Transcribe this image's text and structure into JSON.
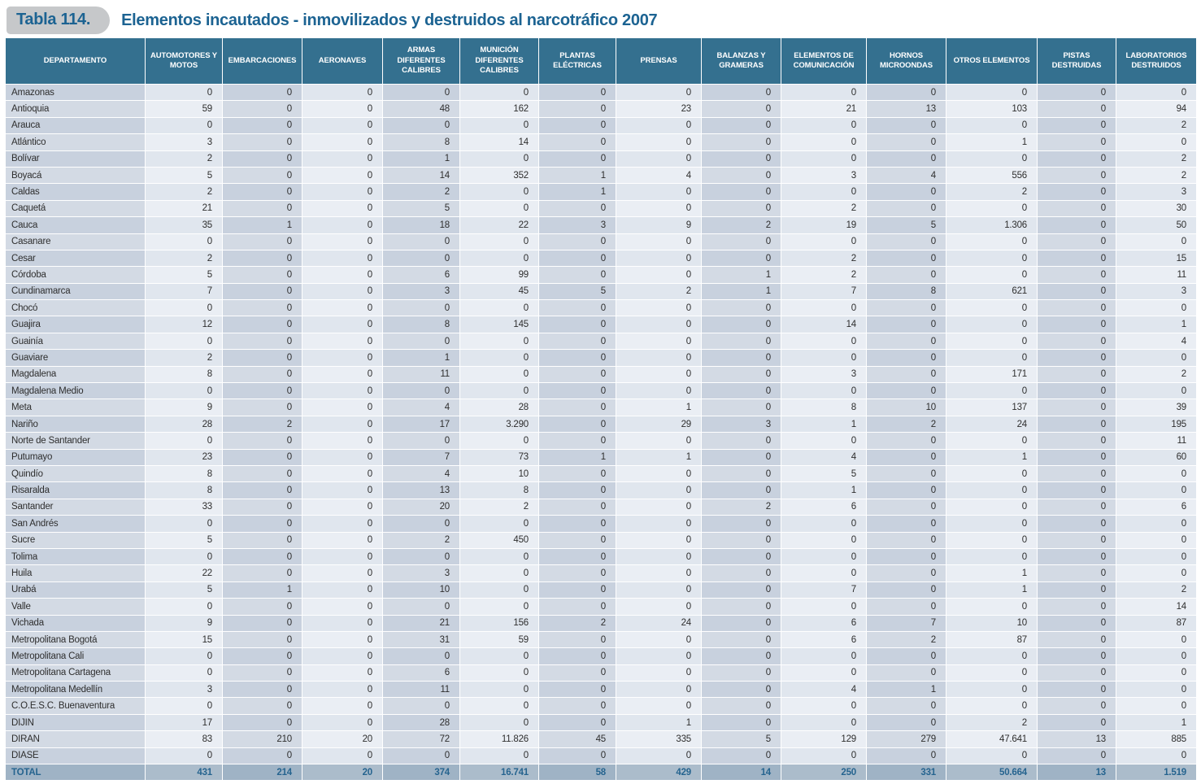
{
  "title": {
    "tab_label": "Tabla 114.",
    "text": "Elementos incautados - inmovilizados y destruidos al narcotráfico 2007"
  },
  "colors": {
    "header_bg": "#34708f",
    "title_text": "#1c6392",
    "tab_bg": "#c6c8ca",
    "total_text": "#26648f",
    "row_dark": "#c8d1de",
    "row_light": "#e0e6ee",
    "total_bg": "#9fb3c5"
  },
  "table": {
    "columns": [
      "DEPARTAMENTO",
      "AUTOMOTORES Y MOTOS",
      "EMBARCACIONES",
      "AERONAVES",
      "ARMAS DIFERENTES CALIBRES",
      "MUNICIÓN DIFERENTES CALIBRES",
      "PLANTAS ELÉCTRICAS",
      "PRENSAS",
      "BALANZAS Y GRAMERAS",
      "ELEMENTOS DE COMUNICACIÓN",
      "HORNOS MICROONDAS",
      "OTROS ELEMENTOS",
      "PISTAS DESTRUIDAS",
      "LABORATORIOS DESTRUIDOS"
    ],
    "rows": [
      [
        "Amazonas",
        "0",
        "0",
        "0",
        "0",
        "0",
        "0",
        "0",
        "0",
        "0",
        "0",
        "0",
        "0",
        "0"
      ],
      [
        "Antioquia",
        "59",
        "0",
        "0",
        "48",
        "162",
        "0",
        "23",
        "0",
        "21",
        "13",
        "103",
        "0",
        "94"
      ],
      [
        "Arauca",
        "0",
        "0",
        "0",
        "0",
        "0",
        "0",
        "0",
        "0",
        "0",
        "0",
        "0",
        "0",
        "2"
      ],
      [
        "Atlántico",
        "3",
        "0",
        "0",
        "8",
        "14",
        "0",
        "0",
        "0",
        "0",
        "0",
        "1",
        "0",
        "0"
      ],
      [
        "Bolívar",
        "2",
        "0",
        "0",
        "1",
        "0",
        "0",
        "0",
        "0",
        "0",
        "0",
        "0",
        "0",
        "2"
      ],
      [
        "Boyacá",
        "5",
        "0",
        "0",
        "14",
        "352",
        "1",
        "4",
        "0",
        "3",
        "4",
        "556",
        "0",
        "2"
      ],
      [
        "Caldas",
        "2",
        "0",
        "0",
        "2",
        "0",
        "1",
        "0",
        "0",
        "0",
        "0",
        "2",
        "0",
        "3"
      ],
      [
        "Caquetá",
        "21",
        "0",
        "0",
        "5",
        "0",
        "0",
        "0",
        "0",
        "2",
        "0",
        "0",
        "0",
        "30"
      ],
      [
        "Cauca",
        "35",
        "1",
        "0",
        "18",
        "22",
        "3",
        "9",
        "2",
        "19",
        "5",
        "1.306",
        "0",
        "50"
      ],
      [
        "Casanare",
        "0",
        "0",
        "0",
        "0",
        "0",
        "0",
        "0",
        "0",
        "0",
        "0",
        "0",
        "0",
        "0"
      ],
      [
        "Cesar",
        "2",
        "0",
        "0",
        "0",
        "0",
        "0",
        "0",
        "0",
        "2",
        "0",
        "0",
        "0",
        "15"
      ],
      [
        "Córdoba",
        "5",
        "0",
        "0",
        "6",
        "99",
        "0",
        "0",
        "1",
        "2",
        "0",
        "0",
        "0",
        "11"
      ],
      [
        "Cundinamarca",
        "7",
        "0",
        "0",
        "3",
        "45",
        "5",
        "2",
        "1",
        "7",
        "8",
        "621",
        "0",
        "3"
      ],
      [
        "Chocó",
        "0",
        "0",
        "0",
        "0",
        "0",
        "0",
        "0",
        "0",
        "0",
        "0",
        "0",
        "0",
        "0"
      ],
      [
        "Guajira",
        "12",
        "0",
        "0",
        "8",
        "145",
        "0",
        "0",
        "0",
        "14",
        "0",
        "0",
        "0",
        "1"
      ],
      [
        "Guainía",
        "0",
        "0",
        "0",
        "0",
        "0",
        "0",
        "0",
        "0",
        "0",
        "0",
        "0",
        "0",
        "4"
      ],
      [
        "Guaviare",
        "2",
        "0",
        "0",
        "1",
        "0",
        "0",
        "0",
        "0",
        "0",
        "0",
        "0",
        "0",
        "0"
      ],
      [
        "Magdalena",
        "8",
        "0",
        "0",
        "11",
        "0",
        "0",
        "0",
        "0",
        "3",
        "0",
        "171",
        "0",
        "2"
      ],
      [
        "Magdalena Medio",
        "0",
        "0",
        "0",
        "0",
        "0",
        "0",
        "0",
        "0",
        "0",
        "0",
        "0",
        "0",
        "0"
      ],
      [
        "Meta",
        "9",
        "0",
        "0",
        "4",
        "28",
        "0",
        "1",
        "0",
        "8",
        "10",
        "137",
        "0",
        "39"
      ],
      [
        "Nariño",
        "28",
        "2",
        "0",
        "17",
        "3.290",
        "0",
        "29",
        "3",
        "1",
        "2",
        "24",
        "0",
        "195"
      ],
      [
        "Norte de Santander",
        "0",
        "0",
        "0",
        "0",
        "0",
        "0",
        "0",
        "0",
        "0",
        "0",
        "0",
        "0",
        "11"
      ],
      [
        "Putumayo",
        "23",
        "0",
        "0",
        "7",
        "73",
        "1",
        "1",
        "0",
        "4",
        "0",
        "1",
        "0",
        "60"
      ],
      [
        "Quindío",
        "8",
        "0",
        "0",
        "4",
        "10",
        "0",
        "0",
        "0",
        "5",
        "0",
        "0",
        "0",
        "0"
      ],
      [
        "Risaralda",
        "8",
        "0",
        "0",
        "13",
        "8",
        "0",
        "0",
        "0",
        "1",
        "0",
        "0",
        "0",
        "0"
      ],
      [
        "Santander",
        "33",
        "0",
        "0",
        "20",
        "2",
        "0",
        "0",
        "2",
        "6",
        "0",
        "0",
        "0",
        "6"
      ],
      [
        "San Andrés",
        "0",
        "0",
        "0",
        "0",
        "0",
        "0",
        "0",
        "0",
        "0",
        "0",
        "0",
        "0",
        "0"
      ],
      [
        "Sucre",
        "5",
        "0",
        "0",
        "2",
        "450",
        "0",
        "0",
        "0",
        "0",
        "0",
        "0",
        "0",
        "0"
      ],
      [
        "Tolima",
        "0",
        "0",
        "0",
        "0",
        "0",
        "0",
        "0",
        "0",
        "0",
        "0",
        "0",
        "0",
        "0"
      ],
      [
        "Huila",
        "22",
        "0",
        "0",
        "3",
        "0",
        "0",
        "0",
        "0",
        "0",
        "0",
        "1",
        "0",
        "0"
      ],
      [
        "Urabá",
        "5",
        "1",
        "0",
        "10",
        "0",
        "0",
        "0",
        "0",
        "7",
        "0",
        "1",
        "0",
        "2"
      ],
      [
        "Valle",
        "0",
        "0",
        "0",
        "0",
        "0",
        "0",
        "0",
        "0",
        "0",
        "0",
        "0",
        "0",
        "14"
      ],
      [
        "Vichada",
        "9",
        "0",
        "0",
        "21",
        "156",
        "2",
        "24",
        "0",
        "6",
        "7",
        "10",
        "0",
        "87"
      ],
      [
        "Metropolitana Bogotá",
        "15",
        "0",
        "0",
        "31",
        "59",
        "0",
        "0",
        "0",
        "6",
        "2",
        "87",
        "0",
        "0"
      ],
      [
        "Metropolitana Cali",
        "0",
        "0",
        "0",
        "0",
        "0",
        "0",
        "0",
        "0",
        "0",
        "0",
        "0",
        "0",
        "0"
      ],
      [
        "Metropolitana Cartagena",
        "0",
        "0",
        "0",
        "6",
        "0",
        "0",
        "0",
        "0",
        "0",
        "0",
        "0",
        "0",
        "0"
      ],
      [
        "Metropolitana Medellín",
        "3",
        "0",
        "0",
        "11",
        "0",
        "0",
        "0",
        "0",
        "4",
        "1",
        "0",
        "0",
        "0"
      ],
      [
        "C.O.E.S.C. Buenaventura",
        "0",
        "0",
        "0",
        "0",
        "0",
        "0",
        "0",
        "0",
        "0",
        "0",
        "0",
        "0",
        "0"
      ],
      [
        "DIJIN",
        "17",
        "0",
        "0",
        "28",
        "0",
        "0",
        "1",
        "0",
        "0",
        "0",
        "2",
        "0",
        "1"
      ],
      [
        "DIRAN",
        "83",
        "210",
        "20",
        "72",
        "11.826",
        "45",
        "335",
        "5",
        "129",
        "279",
        "47.641",
        "13",
        "885"
      ],
      [
        "DIASE",
        "0",
        "0",
        "0",
        "0",
        "0",
        "0",
        "0",
        "0",
        "0",
        "0",
        "0",
        "0",
        "0"
      ]
    ],
    "total_row": [
      "TOTAL",
      "431",
      "214",
      "20",
      "374",
      "16.741",
      "58",
      "429",
      "14",
      "250",
      "331",
      "50.664",
      "13",
      "1.519"
    ]
  }
}
